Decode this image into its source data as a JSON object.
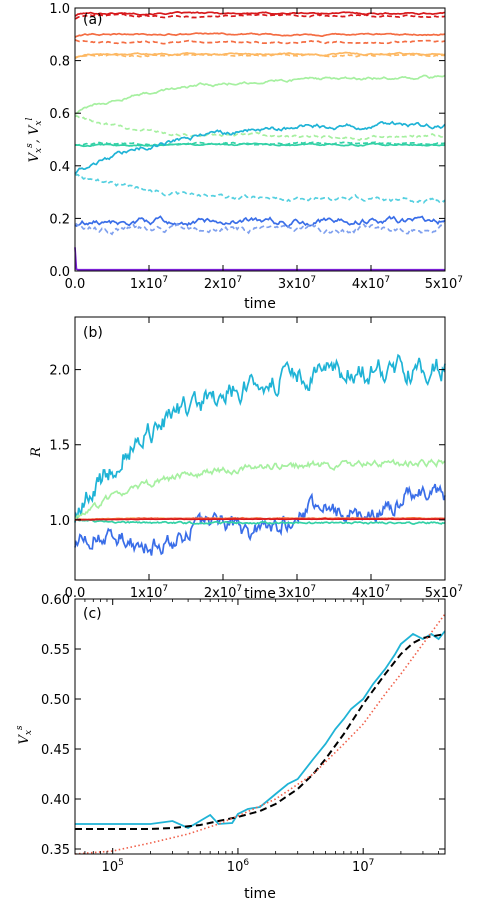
{
  "chart_data": [
    {
      "type": "line",
      "panel_label": "(a)",
      "xlabel": "time",
      "ylabel_parts": [
        "V",
        "x",
        "s",
        ", V",
        "x",
        "l"
      ],
      "xlim": [
        0,
        50000000
      ],
      "ylim": [
        0.0,
        1.0
      ],
      "x_ticks": [
        {
          "value": 0,
          "label": "0.0"
        },
        {
          "value": 10000000,
          "base": "1x10",
          "exp": "7"
        },
        {
          "value": 20000000,
          "base": "2x10",
          "exp": "7"
        },
        {
          "value": 30000000,
          "base": "3x10",
          "exp": "7"
        },
        {
          "value": 40000000,
          "base": "4x10",
          "exp": "7"
        },
        {
          "value": 50000000,
          "base": "5x10",
          "exp": "7"
        }
      ],
      "y_ticks": [
        {
          "value": 0.0,
          "label": "0.0"
        },
        {
          "value": 0.2,
          "label": "0.2"
        },
        {
          "value": 0.4,
          "label": "0.4"
        },
        {
          "value": 0.6,
          "label": "0.6"
        },
        {
          "value": 0.8,
          "label": "0.8"
        },
        {
          "value": 1.0,
          "label": "1.0"
        }
      ],
      "series": [
        {
          "color": "#d7191c",
          "dash": false,
          "start": 0.97,
          "end": 0.98,
          "tau": 0.5,
          "noise": 0.002
        },
        {
          "color": "#d7191c",
          "dash": true,
          "start": 0.96,
          "end": 0.97,
          "tau": 0.5,
          "noise": 0.002
        },
        {
          "color": "#f46d43",
          "dash": false,
          "start": 0.89,
          "end": 0.9,
          "tau": 1.0,
          "noise": 0.002
        },
        {
          "color": "#f46d43",
          "dash": true,
          "start": 0.88,
          "end": 0.87,
          "tau": 1.0,
          "noise": 0.002
        },
        {
          "color": "#fdb863",
          "dash": false,
          "start": 0.81,
          "end": 0.825,
          "tau": 1.0,
          "noise": 0.002
        },
        {
          "color": "#fdb863",
          "dash": true,
          "start": 0.81,
          "end": 0.82,
          "tau": 1.0,
          "noise": 0.002
        },
        {
          "color": "#a6f0a0",
          "dash": false,
          "start": 0.6,
          "end": 0.74,
          "tau": 12.0,
          "noise": 0.004
        },
        {
          "color": "#a6f0a0",
          "dash": true,
          "start": 0.59,
          "end": 0.51,
          "tau": 8.0,
          "noise": 0.004
        },
        {
          "color": "#33d1a6",
          "dash": false,
          "start": 0.48,
          "end": 0.48,
          "tau": 1.0,
          "noise": 0.002
        },
        {
          "color": "#33d1a6",
          "dash": true,
          "start": 0.48,
          "end": 0.485,
          "tau": 1.0,
          "noise": 0.002
        },
        {
          "color": "#1fb3d6",
          "dash": false,
          "start": 0.37,
          "end": 0.56,
          "tau": 12.0,
          "noise": 0.006
        },
        {
          "color": "#55d0e0",
          "dash": true,
          "start": 0.37,
          "end": 0.27,
          "tau": 10.0,
          "noise": 0.006
        },
        {
          "color": "#3a6ee8",
          "dash": false,
          "start": 0.18,
          "end": 0.19,
          "tau": 2.0,
          "noise": 0.008
        },
        {
          "color": "#7fa0ee",
          "dash": true,
          "start": 0.18,
          "end": 0.16,
          "tau": 2.0,
          "noise": 0.008
        },
        {
          "color": "#7b1fd6",
          "dash": false,
          "start": 0.09,
          "end": 0.005,
          "tau": 0.05,
          "noise": 0.0
        }
      ]
    },
    {
      "type": "line",
      "panel_label": "(b)",
      "xlabel": "time",
      "ylabel": "R",
      "xlim": [
        0,
        50000000
      ],
      "ylim": [
        0.6,
        2.35
      ],
      "x_ticks": [
        {
          "value": 0,
          "label": "0.0"
        },
        {
          "value": 10000000,
          "base": "1x10",
          "exp": "7"
        },
        {
          "value": 20000000,
          "base": "2x10",
          "exp": "7"
        },
        {
          "value": 30000000,
          "base": "3x10",
          "exp": "7"
        },
        {
          "value": 40000000,
          "base": "4x10",
          "exp": "7"
        },
        {
          "value": 50000000,
          "base": "5x10",
          "exp": "7"
        }
      ],
      "y_ticks": [
        {
          "value": 1.0,
          "label": "1.0"
        },
        {
          "value": 1.5,
          "label": "1.5"
        },
        {
          "value": 2.0,
          "label": "2.0"
        }
      ],
      "series": [
        {
          "color": "#1fb3d6",
          "start": 1.0,
          "end": 2.03,
          "tau": 12.0,
          "noise": 0.05,
          "dip": 0
        },
        {
          "color": "#a6f0a0",
          "start": 1.0,
          "end": 1.38,
          "tau": 10.0,
          "noise": 0.015,
          "dip": 0
        },
        {
          "color": "#3a6ee8",
          "start": 0.87,
          "end": 1.15,
          "tau": 30.0,
          "noise": 0.04,
          "dip": 1
        },
        {
          "color": "#33d1a6",
          "start": 1.0,
          "end": 0.98,
          "tau": 5.0,
          "noise": 0.004,
          "dip": 0
        },
        {
          "color": "#fdb863",
          "start": 1.0,
          "end": 1.01,
          "tau": 5.0,
          "noise": 0.002,
          "dip": 0
        },
        {
          "color": "#f46d43",
          "start": 1.0,
          "end": 1.01,
          "tau": 5.0,
          "noise": 0.002,
          "dip": 0
        },
        {
          "color": "#d7191c",
          "start": 1.0,
          "end": 1.005,
          "tau": 5.0,
          "noise": 0.001,
          "dip": 0
        }
      ]
    },
    {
      "type": "line",
      "panel_label": "(c)",
      "xlabel": "time",
      "ylabel_parts": [
        "V",
        "x",
        "s"
      ],
      "x_scale": "log",
      "xlim": [
        50000,
        45000000
      ],
      "ylim": [
        0.345,
        0.6
      ],
      "x_ticks": [
        {
          "value": 100000,
          "base": "10",
          "exp": "5"
        },
        {
          "value": 1000000,
          "base": "10",
          "exp": "6"
        },
        {
          "value": 10000000,
          "base": "10",
          "exp": "7"
        }
      ],
      "y_ticks": [
        {
          "value": 0.35,
          "label": "0.35"
        },
        {
          "value": 0.4,
          "label": "0.40"
        },
        {
          "value": 0.45,
          "label": "0.45"
        },
        {
          "value": 0.5,
          "label": "0.50"
        },
        {
          "value": 0.55,
          "label": "0.55"
        },
        {
          "value": 0.6,
          "label": "0.60"
        }
      ],
      "series": [
        {
          "color": "#1fb3d6",
          "style": "solid",
          "points": [
            [
              50000,
              0.375
            ],
            [
              200000,
              0.375
            ],
            [
              300000,
              0.378
            ],
            [
              400000,
              0.371
            ],
            [
              600000,
              0.384
            ],
            [
              700000,
              0.375
            ],
            [
              900000,
              0.376
            ],
            [
              1000000,
              0.385
            ],
            [
              1200000,
              0.39
            ],
            [
              1500000,
              0.392
            ],
            [
              2000000,
              0.405
            ],
            [
              2500000,
              0.415
            ],
            [
              3000000,
              0.42
            ],
            [
              4000000,
              0.44
            ],
            [
              5000000,
              0.455
            ],
            [
              6000000,
              0.47
            ],
            [
              7000000,
              0.48
            ],
            [
              8000000,
              0.49
            ],
            [
              10000000,
              0.5
            ],
            [
              12000000,
              0.515
            ],
            [
              15000000,
              0.53
            ],
            [
              18000000,
              0.545
            ],
            [
              20000000,
              0.555
            ],
            [
              25000000,
              0.565
            ],
            [
              30000000,
              0.56
            ],
            [
              35000000,
              0.565
            ],
            [
              40000000,
              0.56
            ],
            [
              45000000,
              0.568
            ]
          ]
        },
        {
          "color": "#000000",
          "style": "dashed",
          "points": [
            [
              50000,
              0.37
            ],
            [
              200000,
              0.37
            ],
            [
              300000,
              0.371
            ],
            [
              500000,
              0.374
            ],
            [
              700000,
              0.378
            ],
            [
              1000000,
              0.382
            ],
            [
              1500000,
              0.388
            ],
            [
              2000000,
              0.395
            ],
            [
              3000000,
              0.41
            ],
            [
              4000000,
              0.425
            ],
            [
              5000000,
              0.44
            ],
            [
              7000000,
              0.465
            ],
            [
              10000000,
              0.495
            ],
            [
              15000000,
              0.525
            ],
            [
              20000000,
              0.545
            ],
            [
              25000000,
              0.556
            ],
            [
              30000000,
              0.561
            ],
            [
              45000000,
              0.565
            ]
          ]
        },
        {
          "color": "#f0604a",
          "style": "dotted",
          "points": [
            [
              50000,
              0.345
            ],
            [
              100000,
              0.348
            ],
            [
              200000,
              0.356
            ],
            [
              400000,
              0.365
            ],
            [
              700000,
              0.375
            ],
            [
              1000000,
              0.383
            ],
            [
              2000000,
              0.4
            ],
            [
              4000000,
              0.425
            ],
            [
              7000000,
              0.455
            ],
            [
              10000000,
              0.475
            ],
            [
              15000000,
              0.505
            ],
            [
              20000000,
              0.525
            ],
            [
              30000000,
              0.555
            ],
            [
              45000000,
              0.585
            ]
          ]
        }
      ]
    }
  ]
}
